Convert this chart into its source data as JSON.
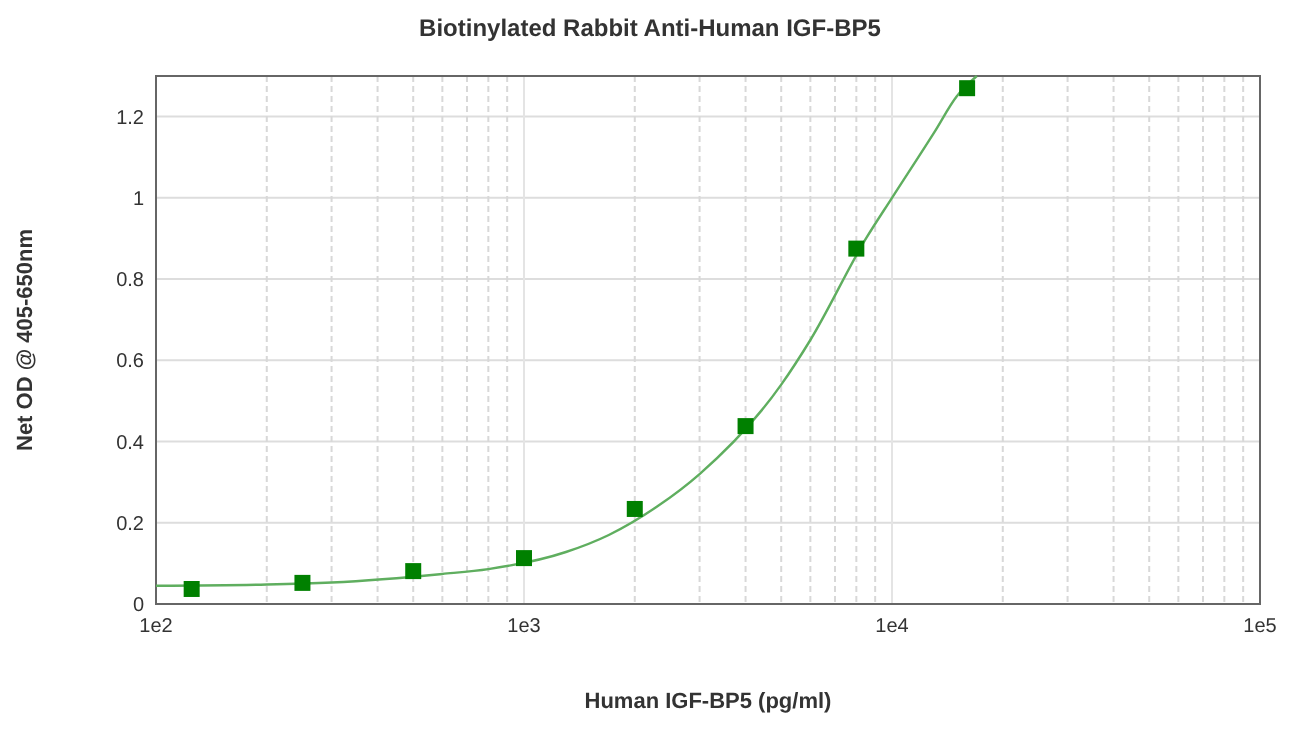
{
  "chart_data": {
    "type": "scatter",
    "title": "Biotinylated Rabbit Anti-Human IGF-BP5",
    "xlabel": "Human IGF-BP5 (pg/ml)",
    "ylabel": "Net OD @ 405-650nm",
    "log": "x",
    "grid": true,
    "xlim": [
      100,
      100000
    ],
    "ylim": [
      0,
      1.3
    ],
    "xticks": [
      {
        "value": 100,
        "label": "1e2"
      },
      {
        "value": 200,
        "label": null
      },
      {
        "value": 300,
        "label": null
      },
      {
        "value": 400,
        "label": null
      },
      {
        "value": 500,
        "label": null
      },
      {
        "value": 600,
        "label": null
      },
      {
        "value": 700,
        "label": null
      },
      {
        "value": 800,
        "label": null
      },
      {
        "value": 900,
        "label": null
      },
      {
        "value": 1000,
        "label": "1e3"
      },
      {
        "value": 2000,
        "label": null
      },
      {
        "value": 3000,
        "label": null
      },
      {
        "value": 4000,
        "label": null
      },
      {
        "value": 5000,
        "label": null
      },
      {
        "value": 6000,
        "label": null
      },
      {
        "value": 7000,
        "label": null
      },
      {
        "value": 8000,
        "label": null
      },
      {
        "value": 9000,
        "label": null
      },
      {
        "value": 10000,
        "label": "1e4"
      },
      {
        "value": 20000,
        "label": null
      },
      {
        "value": 30000,
        "label": null
      },
      {
        "value": 40000,
        "label": null
      },
      {
        "value": 50000,
        "label": null
      },
      {
        "value": 60000,
        "label": null
      },
      {
        "value": 70000,
        "label": null
      },
      {
        "value": 80000,
        "label": null
      },
      {
        "value": 90000,
        "label": null
      },
      {
        "value": 100000,
        "label": "1e5"
      }
    ],
    "yticks": [
      0,
      0.2,
      0.4,
      0.6,
      0.8,
      1,
      1.2
    ],
    "series": [
      {
        "type": "line",
        "color": "#5fae5f",
        "marker": "none",
        "line_style": "solid",
        "x": [
          100,
          200,
          300,
          600,
          800,
          1300,
          1700,
          2300,
          3000,
          5000,
          6000,
          8500,
          10000,
          13000,
          15000,
          17000
        ],
        "values": [
          0.045,
          0.048,
          0.053,
          0.074,
          0.086,
          0.128,
          0.17,
          0.24,
          0.32,
          0.54,
          0.65,
          0.9,
          1.0,
          1.16,
          1.25,
          1.3
        ]
      },
      {
        "color": "#008000",
        "marker": "square",
        "x": [
          125,
          250,
          500,
          1000,
          2000,
          4000,
          8000,
          16000
        ],
        "values": [
          0.037,
          0.052,
          0.081,
          0.113,
          0.234,
          0.438,
          0.875,
          1.27
        ]
      }
    ]
  }
}
